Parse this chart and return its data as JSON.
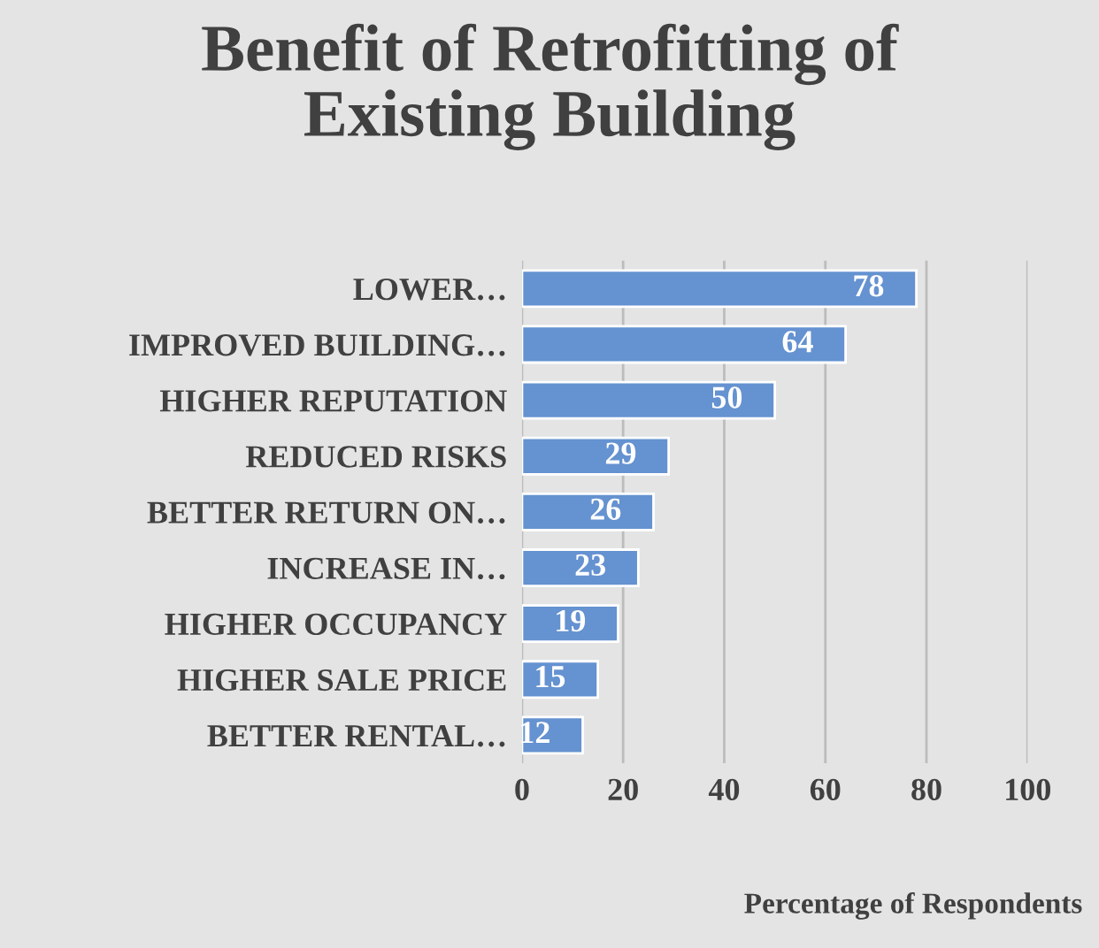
{
  "chart_data": {
    "type": "bar",
    "orientation": "horizontal",
    "title": "Benefit of Retrofitting of\nExisting Building",
    "categories": [
      "LOWER…",
      "IMPROVED BUILDING…",
      "HIGHER REPUTATION",
      "REDUCED RISKS",
      "BETTER RETURN ON…",
      "INCREASE IN…",
      "HIGHER OCCUPANCY",
      "HIGHER SALE PRICE",
      "BETTER RENTAL…"
    ],
    "values": [
      78,
      64,
      50,
      29,
      26,
      23,
      19,
      15,
      12
    ],
    "color": "#6592d0",
    "xlim": [
      0,
      100
    ],
    "xticks": [
      0,
      20,
      40,
      60,
      80,
      100
    ],
    "grid": "x",
    "data_labels": true,
    "xlabel": "Percentage of Respondents"
  }
}
